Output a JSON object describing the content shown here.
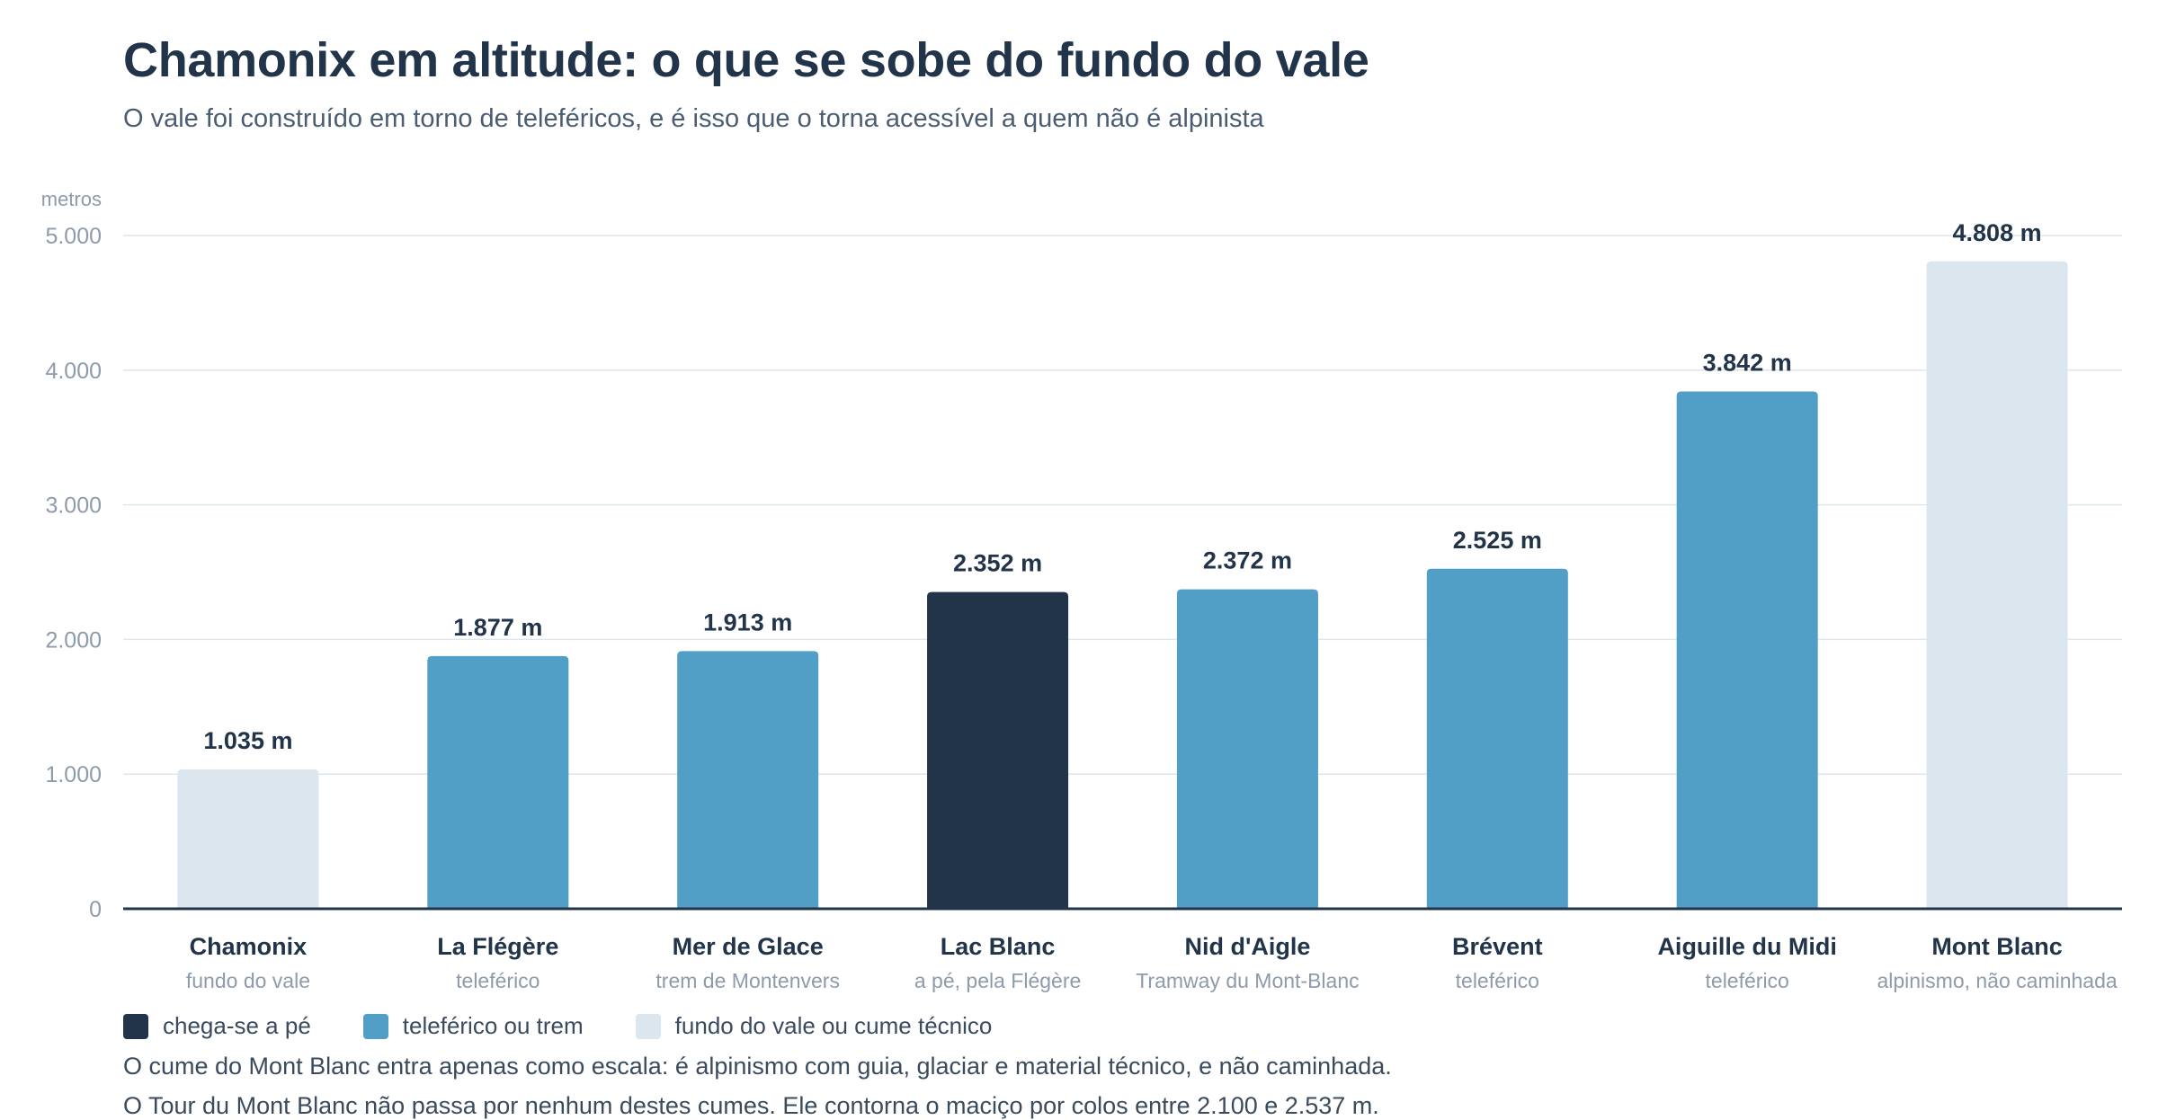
{
  "header": {
    "title": "Chamonix em altitude: o que se sobe do fundo do vale",
    "subtitle": "O vale foi construído em torno de teleféricos, e é isso que o torna acessível a quem não é alpinista"
  },
  "colors": {
    "walk": "#22344a",
    "lift": "#519ec6",
    "light": "#dce6ef",
    "grid": "#dde6ec",
    "axis": "#22344a",
    "tick_text": "#8d9bab",
    "label_text": "#22344a",
    "sub_text": "#8d9bab"
  },
  "chart_data": {
    "type": "bar",
    "ylabel": "metros",
    "ylim": [
      0,
      5000
    ],
    "yticks": [
      0,
      1000,
      2000,
      3000,
      4000,
      5000
    ],
    "ytick_labels": [
      "0",
      "1.000",
      "2.000",
      "3.000",
      "4.000",
      "5.000"
    ],
    "grid": true,
    "categories": [
      "Chamonix",
      "La Flégère",
      "Mer de Glace",
      "Lac Blanc",
      "Nid d'Aigle",
      "Brévent",
      "Aiguille du Midi",
      "Mont Blanc"
    ],
    "sublabels": [
      "fundo do vale",
      "teleférico",
      "trem de Montenvers",
      "a pé, pela Flégère",
      "Tramway du Mont-Blanc",
      "teleférico",
      "teleférico",
      "alpinismo, não caminhada"
    ],
    "values": [
      1035,
      1877,
      1913,
      2352,
      2372,
      2525,
      3842,
      4808
    ],
    "value_labels": [
      "1.035 m",
      "1.877 m",
      "1.913 m",
      "2.352 m",
      "2.372 m",
      "2.525 m",
      "3.842 m",
      "4.808 m"
    ],
    "groups": [
      "light",
      "lift",
      "lift",
      "walk",
      "lift",
      "lift",
      "lift",
      "light"
    ]
  },
  "legend": {
    "items": [
      {
        "label": "chega-se a pé",
        "color": "#22344a"
      },
      {
        "label": "teleférico ou trem",
        "color": "#519ec6"
      },
      {
        "label": "fundo do vale ou cume técnico",
        "color": "#dce6ef"
      }
    ]
  },
  "notes": {
    "line1": "O cume do Mont Blanc entra apenas como escala: é alpinismo com guia, glaciar e material técnico, e não caminhada.",
    "line2": "O Tour du Mont Blanc não passa por nenhum destes cumes. Ele contorna o maciço por colos entre 2.100 e 2.537 m."
  }
}
